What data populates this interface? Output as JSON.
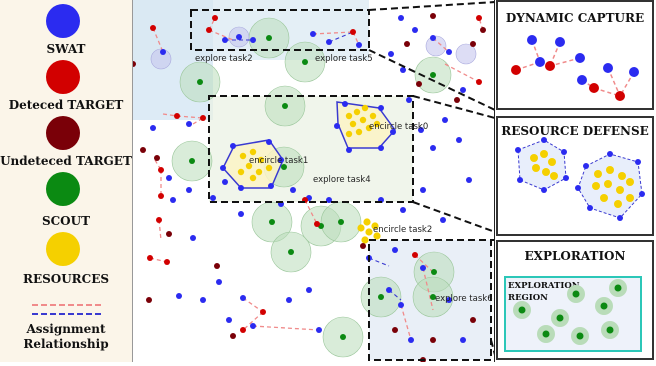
{
  "legend": {
    "items": [
      {
        "label": "SWAT",
        "color": "#2b2bf0"
      },
      {
        "label": "Deteced TARGET",
        "color": "#d20000"
      },
      {
        "label": "Undeteced TARGET",
        "color": "#7a0008"
      },
      {
        "label": "SCOUT",
        "color": "#0b8a12"
      },
      {
        "label": "RESOURCES",
        "color": "#f5d000"
      }
    ],
    "assignment_label": "Assignment\nRelationship"
  },
  "map": {
    "task_labels": {
      "explore2": "explore task2",
      "explore5": "explore task5",
      "encircle0": "encircle task0",
      "encircle1": "encircle task1",
      "explore4": "explore task4",
      "encircle2": "encircle task2",
      "explore6": "explore task6"
    }
  },
  "panels": {
    "dynamic_capture": "DYNAMIC CAPTURE",
    "resource_defense": "RESOURCE DEFENSE",
    "exploration": "EXPLORATION",
    "exploration_region": "EXPLORATION\nREGION"
  },
  "colors": {
    "swat": "#2b2bf0",
    "detected": "#d20000",
    "undetected": "#7a0008",
    "scout": "#0b8a12",
    "resource": "#f5d000",
    "scout_halo": "#b9dcb9"
  }
}
